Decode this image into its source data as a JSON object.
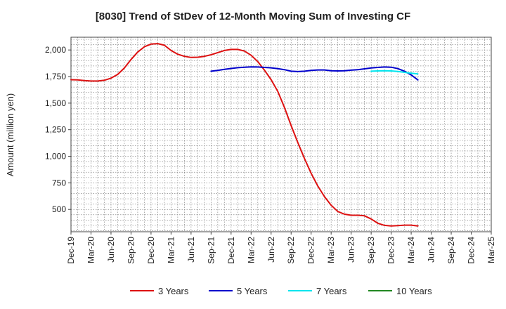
{
  "chart_data": {
    "type": "line",
    "title": "[8030]  Trend of StDev of 12-Month Moving Sum of Investing CF",
    "ylabel": "Amount (million yen)",
    "xlabel": "",
    "ylim": [
      290,
      2120
    ],
    "yticks": [
      500,
      750,
      1000,
      1250,
      1500,
      1750,
      2000
    ],
    "ytick_labels": [
      "500",
      "750",
      "1,000",
      "1,250",
      "1,500",
      "1,750",
      "2,000"
    ],
    "x_start": "2019-12",
    "x_end": "2025-03",
    "xtick_labels": [
      "Dec-19",
      "Mar-20",
      "Jun-20",
      "Sep-20",
      "Dec-20",
      "Mar-21",
      "Jun-21",
      "Sep-21",
      "Dec-21",
      "Mar-22",
      "Jun-22",
      "Sep-22",
      "Dec-22",
      "Mar-23",
      "Jun-23",
      "Sep-23",
      "Dec-23",
      "Mar-24",
      "Jun-24",
      "Sep-24",
      "Dec-24",
      "Mar-25"
    ],
    "grid": true,
    "legend_position": "bottom",
    "series": [
      {
        "name": "3 Years",
        "color": "#dd1111",
        "points": [
          [
            "2019-12",
            1720
          ],
          [
            "2020-01",
            1718
          ],
          [
            "2020-02",
            1712
          ],
          [
            "2020-03",
            1708
          ],
          [
            "2020-04",
            1708
          ],
          [
            "2020-05",
            1715
          ],
          [
            "2020-06",
            1735
          ],
          [
            "2020-07",
            1770
          ],
          [
            "2020-08",
            1830
          ],
          [
            "2020-09",
            1910
          ],
          [
            "2020-10",
            1980
          ],
          [
            "2020-11",
            2030
          ],
          [
            "2020-12",
            2055
          ],
          [
            "2021-01",
            2060
          ],
          [
            "2021-02",
            2045
          ],
          [
            "2021-03",
            1995
          ],
          [
            "2021-04",
            1960
          ],
          [
            "2021-05",
            1940
          ],
          [
            "2021-06",
            1930
          ],
          [
            "2021-07",
            1932
          ],
          [
            "2021-08",
            1940
          ],
          [
            "2021-09",
            1955
          ],
          [
            "2021-10",
            1975
          ],
          [
            "2021-11",
            1995
          ],
          [
            "2021-12",
            2005
          ],
          [
            "2022-01",
            2005
          ],
          [
            "2022-02",
            1990
          ],
          [
            "2022-03",
            1950
          ],
          [
            "2022-04",
            1890
          ],
          [
            "2022-05",
            1810
          ],
          [
            "2022-06",
            1720
          ],
          [
            "2022-07",
            1610
          ],
          [
            "2022-08",
            1460
          ],
          [
            "2022-09",
            1290
          ],
          [
            "2022-10",
            1130
          ],
          [
            "2022-11",
            980
          ],
          [
            "2022-12",
            840
          ],
          [
            "2023-01",
            720
          ],
          [
            "2023-02",
            620
          ],
          [
            "2023-03",
            540
          ],
          [
            "2023-04",
            480
          ],
          [
            "2023-05",
            455
          ],
          [
            "2023-06",
            445
          ],
          [
            "2023-07",
            445
          ],
          [
            "2023-08",
            440
          ],
          [
            "2023-09",
            410
          ],
          [
            "2023-10",
            370
          ],
          [
            "2023-11",
            350
          ],
          [
            "2023-12",
            345
          ],
          [
            "2024-01",
            348
          ],
          [
            "2024-02",
            352
          ],
          [
            "2024-03",
            352
          ],
          [
            "2024-04",
            345
          ]
        ]
      },
      {
        "name": "5 Years",
        "color": "#0000cc",
        "points": [
          [
            "2021-09",
            1800
          ],
          [
            "2021-10",
            1808
          ],
          [
            "2021-11",
            1818
          ],
          [
            "2021-12",
            1826
          ],
          [
            "2022-01",
            1833
          ],
          [
            "2022-02",
            1838
          ],
          [
            "2022-03",
            1841
          ],
          [
            "2022-04",
            1840
          ],
          [
            "2022-05",
            1836
          ],
          [
            "2022-06",
            1832
          ],
          [
            "2022-07",
            1824
          ],
          [
            "2022-08",
            1815
          ],
          [
            "2022-09",
            1800
          ],
          [
            "2022-10",
            1797
          ],
          [
            "2022-11",
            1800
          ],
          [
            "2022-12",
            1808
          ],
          [
            "2023-01",
            1812
          ],
          [
            "2023-02",
            1812
          ],
          [
            "2023-03",
            1805
          ],
          [
            "2023-04",
            1803
          ],
          [
            "2023-05",
            1805
          ],
          [
            "2023-06",
            1810
          ],
          [
            "2023-07",
            1815
          ],
          [
            "2023-08",
            1823
          ],
          [
            "2023-09",
            1831
          ],
          [
            "2023-10",
            1836
          ],
          [
            "2023-11",
            1840
          ],
          [
            "2023-12",
            1838
          ],
          [
            "2024-01",
            1825
          ],
          [
            "2024-02",
            1800
          ],
          [
            "2024-03",
            1765
          ],
          [
            "2024-04",
            1718
          ]
        ]
      },
      {
        "name": "7 Years",
        "color": "#00e5ee",
        "points": [
          [
            "2023-09",
            1800
          ],
          [
            "2023-10",
            1803
          ],
          [
            "2023-11",
            1805
          ],
          [
            "2023-12",
            1803
          ],
          [
            "2024-01",
            1798
          ],
          [
            "2024-02",
            1790
          ],
          [
            "2024-03",
            1782
          ],
          [
            "2024-04",
            1775
          ]
        ]
      },
      {
        "name": "10 Years",
        "color": "#228822",
        "points": []
      }
    ]
  }
}
